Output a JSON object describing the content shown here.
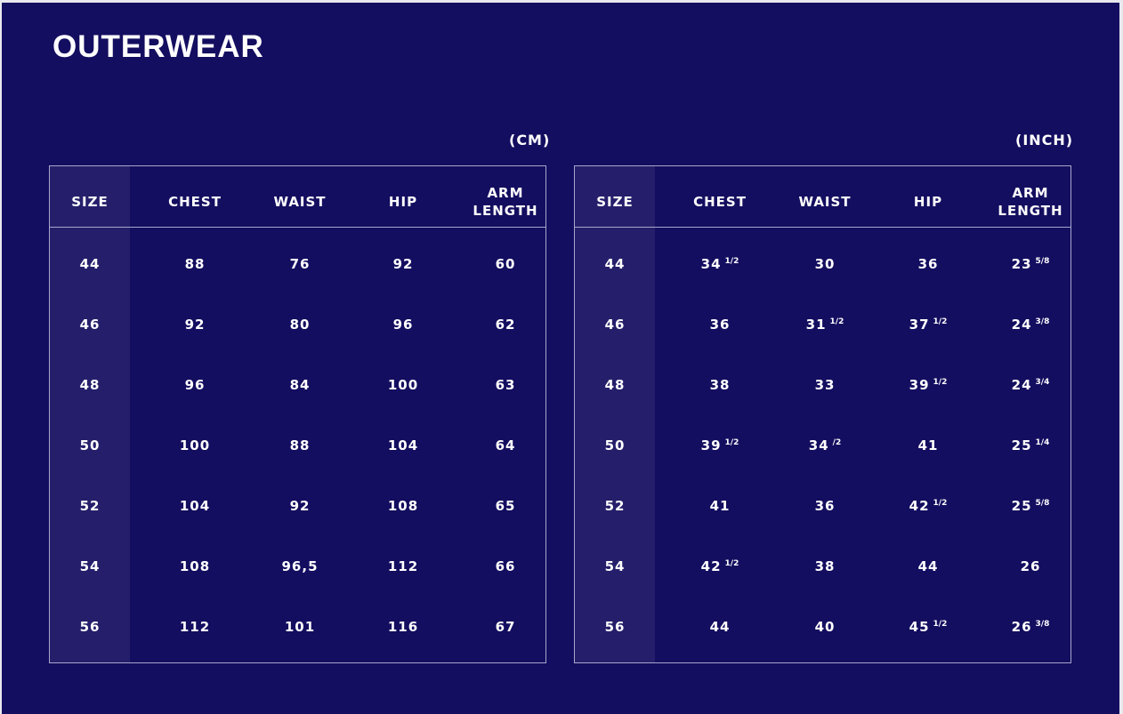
{
  "title": "OUTERWEAR",
  "colors": {
    "background": "#140e60",
    "size_column": "#251f6b",
    "text": "#ffffff"
  },
  "tables": [
    {
      "unit": "(CM)",
      "headers": [
        "SIZE",
        "CHEST",
        "WAIST",
        "HIP",
        "ARM LENGTH"
      ],
      "rows": [
        [
          {
            "v": "44"
          },
          {
            "v": "88"
          },
          {
            "v": "76"
          },
          {
            "v": "92"
          },
          {
            "v": "60"
          }
        ],
        [
          {
            "v": "46"
          },
          {
            "v": "92"
          },
          {
            "v": "80"
          },
          {
            "v": "96"
          },
          {
            "v": "62"
          }
        ],
        [
          {
            "v": "48"
          },
          {
            "v": "96"
          },
          {
            "v": "84"
          },
          {
            "v": "100"
          },
          {
            "v": "63"
          }
        ],
        [
          {
            "v": "50"
          },
          {
            "v": "100"
          },
          {
            "v": "88"
          },
          {
            "v": "104"
          },
          {
            "v": "64"
          }
        ],
        [
          {
            "v": "52"
          },
          {
            "v": "104"
          },
          {
            "v": "92"
          },
          {
            "v": "108"
          },
          {
            "v": "65"
          }
        ],
        [
          {
            "v": "54"
          },
          {
            "v": "108"
          },
          {
            "v": "96,5"
          },
          {
            "v": "112"
          },
          {
            "v": "66"
          }
        ],
        [
          {
            "v": "56"
          },
          {
            "v": "112"
          },
          {
            "v": "101"
          },
          {
            "v": "116"
          },
          {
            "v": "67"
          }
        ]
      ]
    },
    {
      "unit": "(INCH)",
      "headers": [
        "SIZE",
        "CHEST",
        "WAIST",
        "HIP",
        "ARM LENGTH"
      ],
      "rows": [
        [
          {
            "v": "44"
          },
          {
            "v": "34",
            "f": "1/2"
          },
          {
            "v": "30"
          },
          {
            "v": "36"
          },
          {
            "v": "23",
            "f": "5/8"
          }
        ],
        [
          {
            "v": "46"
          },
          {
            "v": "36"
          },
          {
            "v": "31",
            "f": "1/2"
          },
          {
            "v": "37",
            "f": "1/2"
          },
          {
            "v": "24",
            "f": "3/8"
          }
        ],
        [
          {
            "v": "48"
          },
          {
            "v": "38"
          },
          {
            "v": "33"
          },
          {
            "v": "39",
            "f": "1/2"
          },
          {
            "v": "24",
            "f": "3/4"
          }
        ],
        [
          {
            "v": "50"
          },
          {
            "v": "39",
            "f": "1/2"
          },
          {
            "v": "34",
            "f": "/2"
          },
          {
            "v": "41"
          },
          {
            "v": "25",
            "f": "1/4"
          }
        ],
        [
          {
            "v": "52"
          },
          {
            "v": "41"
          },
          {
            "v": "36"
          },
          {
            "v": "42",
            "f": "1/2"
          },
          {
            "v": "25",
            "f": "5/8"
          }
        ],
        [
          {
            "v": "54"
          },
          {
            "v": "42",
            "f": "1/2"
          },
          {
            "v": "38"
          },
          {
            "v": "44"
          },
          {
            "v": "26"
          }
        ],
        [
          {
            "v": "56"
          },
          {
            "v": "44"
          },
          {
            "v": "40"
          },
          {
            "v": "45",
            "f": "1/2"
          },
          {
            "v": "26",
            "f": "3/8"
          }
        ]
      ]
    }
  ]
}
